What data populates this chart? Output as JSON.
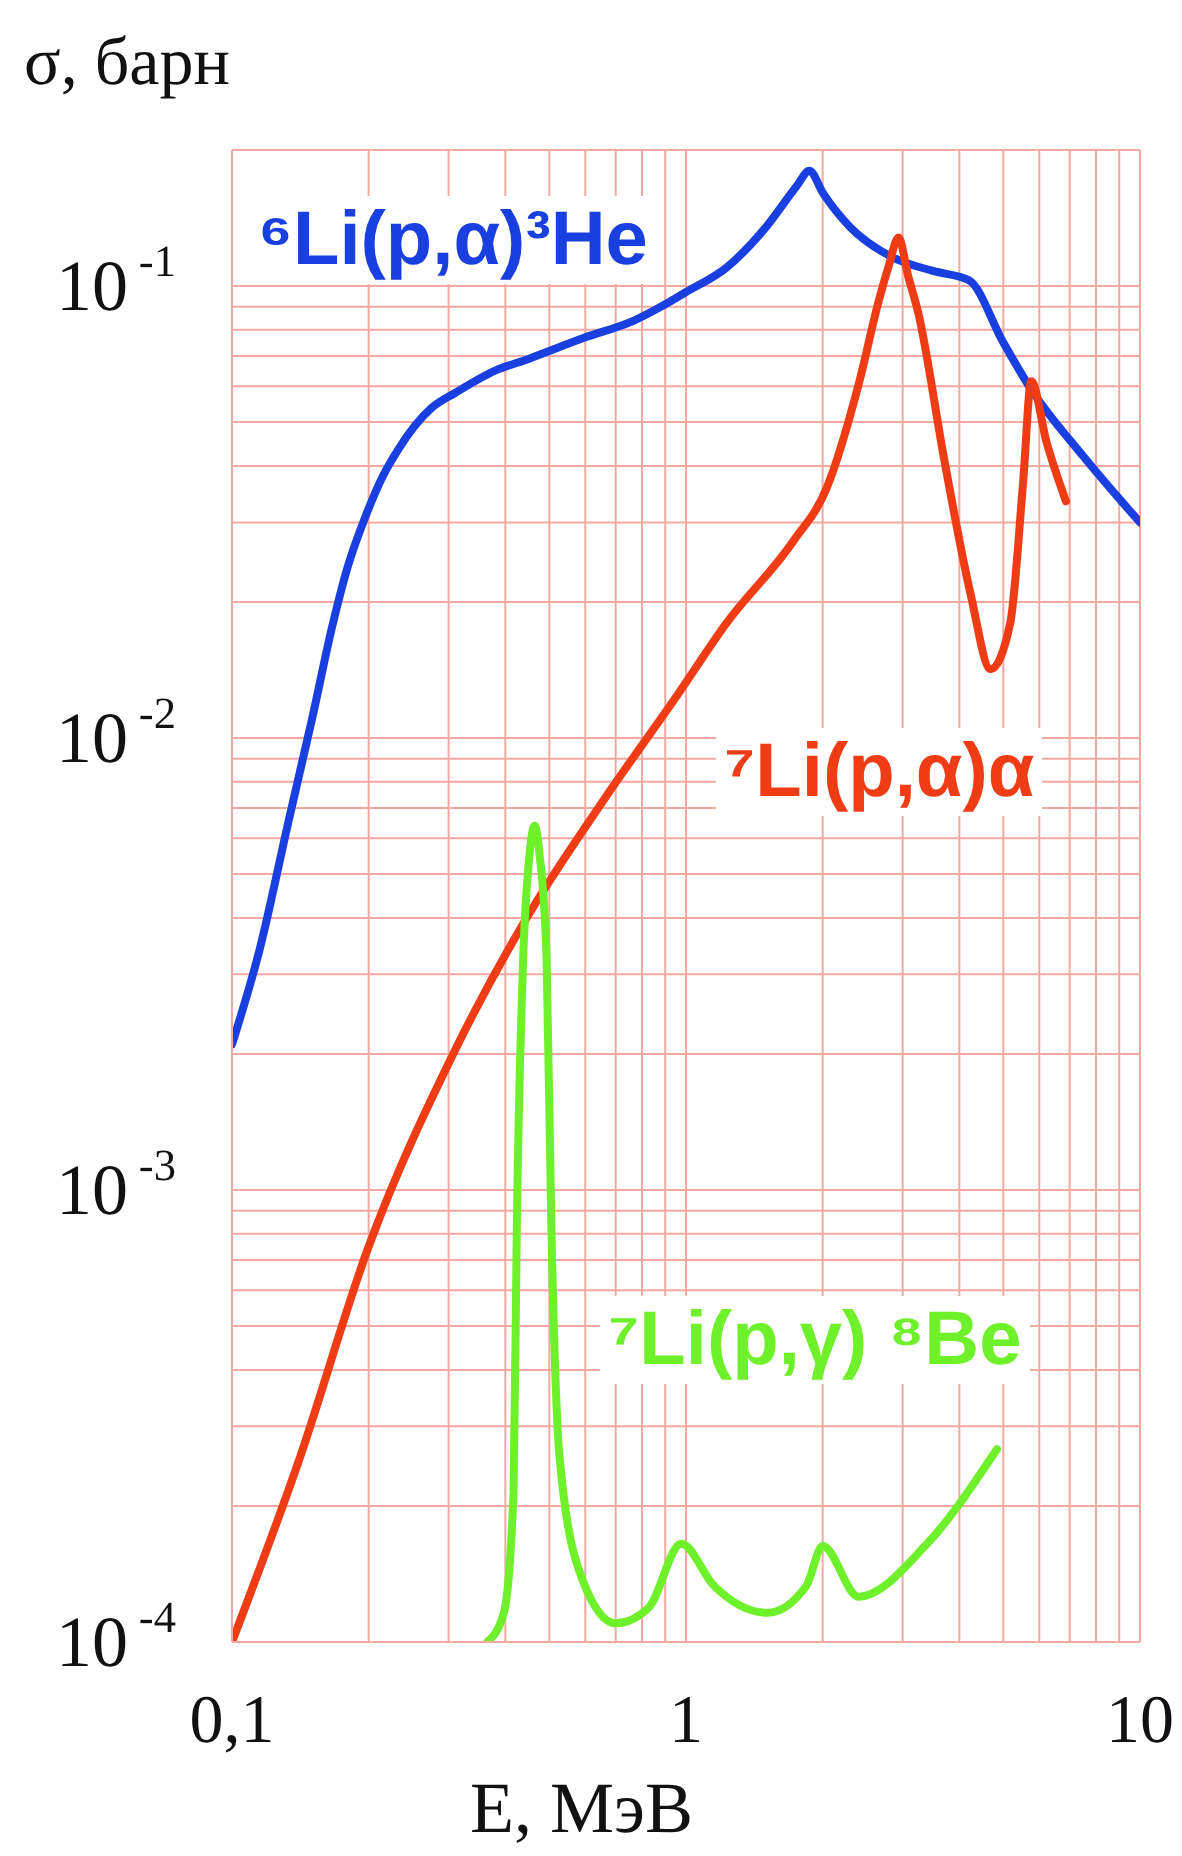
{
  "chart_data": {
    "type": "line",
    "xlabel": "E, МэВ",
    "ylabel": "σ, барн",
    "log": "xy",
    "grid": true,
    "xlim": [
      0.1,
      10
    ],
    "xticks": [
      {
        "value": 0.1,
        "label": "0,1"
      },
      {
        "value": 0.2,
        "label": null
      },
      {
        "value": 0.3,
        "label": null
      },
      {
        "value": 0.4,
        "label": null
      },
      {
        "value": 0.5,
        "label": null
      },
      {
        "value": 0.6,
        "label": null
      },
      {
        "value": 0.7,
        "label": null
      },
      {
        "value": 0.8,
        "label": null
      },
      {
        "value": 0.9,
        "label": null
      },
      1,
      {
        "value": 2,
        "label": null
      },
      {
        "value": 3,
        "label": null
      },
      {
        "value": 4,
        "label": null
      },
      {
        "value": 5,
        "label": null
      },
      {
        "value": 6,
        "label": null
      },
      {
        "value": 7,
        "label": null
      },
      {
        "value": 8,
        "label": null
      },
      {
        "value": 9,
        "label": null
      },
      10
    ],
    "ylim": [
      0.0001,
      0.2
    ],
    "yticks": [
      {
        "value": 0.0001,
        "label": "10$^{-4}$"
      },
      {
        "value": 0.0002,
        "label": null
      },
      {
        "value": 0.0003,
        "label": null
      },
      {
        "value": 0.0004,
        "label": null
      },
      {
        "value": 0.0005,
        "label": null
      },
      {
        "value": 0.0006,
        "label": null
      },
      {
        "value": 0.0007,
        "label": null
      },
      {
        "value": 0.0008,
        "label": null
      },
      {
        "value": 0.0009,
        "label": null
      },
      {
        "value": 0.001,
        "label": "10$^{-3}$"
      },
      {
        "value": 0.002,
        "label": null
      },
      {
        "value": 0.003,
        "label": null
      },
      {
        "value": 0.004,
        "label": null
      },
      {
        "value": 0.005,
        "label": null
      },
      {
        "value": 0.006,
        "label": null
      },
      {
        "value": 0.007,
        "label": null
      },
      {
        "value": 0.008,
        "label": null
      },
      {
        "value": 0.009,
        "label": null
      },
      {
        "value": 0.01,
        "label": "10$^{-2}$"
      },
      {
        "value": 0.02,
        "label": null
      },
      {
        "value": 0.03,
        "label": null
      },
      {
        "value": 0.04,
        "label": null
      },
      {
        "value": 0.05,
        "label": null
      },
      {
        "value": 0.06,
        "label": null
      },
      {
        "value": 0.07,
        "label": null
      },
      {
        "value": 0.08,
        "label": null
      },
      {
        "value": 0.09,
        "label": null
      },
      {
        "value": 0.1,
        "label": "10$^{-1}$"
      },
      {
        "value": 0.2,
        "label": null
      }
    ],
    "series": [
      {
        "name": "⁶Li(p,α)³He",
        "color": "#1a3fe0",
        "x": [
          0.1,
          0.115,
          0.133,
          0.15,
          0.167,
          0.18,
          0.197,
          0.215,
          0.233,
          0.275,
          0.31,
          0.38,
          0.45,
          0.6,
          0.77,
          0.88,
          1,
          1.23,
          1.5,
          1.75,
          1.87,
          2,
          2.3,
          2.84,
          3.5,
          4.2,
          5,
          5.7,
          7.5,
          10
        ],
        "values": [
          0.0021,
          0.0034,
          0.0065,
          0.011,
          0.018,
          0.024,
          0.031,
          0.038,
          0.0437,
          0.0537,
          0.058,
          0.065,
          0.069,
          0.077,
          0.084,
          0.09,
          0.097,
          0.11,
          0.135,
          0.166,
          0.18,
          0.161,
          0.135,
          0.116,
          0.108,
          0.103,
          0.075,
          0.06,
          0.042,
          0.03
        ]
      },
      {
        "name": "⁷Li(p,α)α",
        "color": "#f03c14",
        "x": [
          0.1,
          0.14,
          0.2,
          0.307,
          0.449,
          0.656,
          0.96,
          1.23,
          1.72,
          2.04,
          2.41,
          2.66,
          2.79,
          2.94,
          3.08,
          3.25,
          3.71,
          4.24,
          4.69,
          5.18,
          5.53,
          5.76,
          6.22,
          6.87
        ],
        "values": [
          0.0001,
          0.00025,
          0.00075,
          0.002,
          0.00405,
          0.00725,
          0.0125,
          0.018,
          0.0272,
          0.0357,
          0.0616,
          0.093,
          0.11,
          0.128,
          0.106,
          0.087,
          0.041,
          0.0207,
          0.0142,
          0.018,
          0.037,
          0.0616,
          0.0453,
          0.0334
        ]
      },
      {
        "name": "⁷Li(p,γ) ⁸Be",
        "color": "#6ef02a",
        "x": [
          0.365,
          0.397,
          0.417,
          0.424,
          0.438,
          0.452,
          0.464,
          0.476,
          0.493,
          0.505,
          0.527,
          0.592,
          0.7,
          0.827,
          0.976,
          1.154,
          1.51,
          1.84,
          2,
          2.4,
          3.36,
          4.84
        ],
        "values": [
          0.0001,
          0.000116,
          0.000214,
          0.00084,
          0.00328,
          0.0055,
          0.0064,
          0.0055,
          0.00328,
          0.00084,
          0.000254,
          0.000137,
          0.00011,
          0.000119,
          0.000165,
          0.000133,
          0.000116,
          0.000133,
          0.000163,
          0.000126,
          0.000163,
          0.000267
        ]
      }
    ]
  }
}
